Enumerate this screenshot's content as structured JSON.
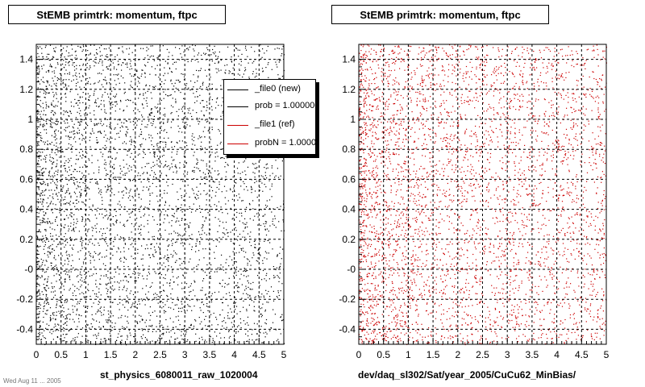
{
  "footer_note": "Wed Aug 11 ... 2005",
  "legend": {
    "entries": [
      {
        "label": "_file0 (new)",
        "color": "#000000"
      },
      {
        "label": "prob = 1.000000",
        "color": "#000000"
      },
      {
        "label": "_file1 (ref)",
        "color": "#cc0000"
      },
      {
        "label": "probN = 1.000000",
        "color": "#cc0000"
      }
    ]
  },
  "colors": {
    "new": "#000000",
    "ref": "#cc0000",
    "grid": "#000000"
  },
  "chart_data": [
    {
      "type": "scatter",
      "title": "StEMB primtrk: momentum, ftpc",
      "xlabel": "st_physics_6080011_raw_1020004",
      "ylabel": "",
      "xlim": [
        0,
        5
      ],
      "ylim": [
        -0.5,
        1.5
      ],
      "x_ticks": [
        "0",
        "0.5",
        "1",
        "1.5",
        "2",
        "2.5",
        "3",
        "3.5",
        "4",
        "4.5",
        "5"
      ],
      "y_ticks": [
        "-0.4",
        "-0.2",
        "-0",
        "0.2",
        "0.4",
        "0.6",
        "0.8",
        "1",
        "1.2",
        "1.4"
      ],
      "grid": true,
      "legend_position": "top-right",
      "series": [
        {
          "name": "_file0 (new)",
          "color": "#000000",
          "distribution": "uniform in y over [-0.5, 1.5]; density highest near x = 0.2 and decreasing toward x = 5",
          "points": [
            [
              0.12,
              1.42
            ],
            [
              0.25,
              1.18
            ],
            [
              0.31,
              0.95
            ],
            [
              0.18,
              0.72
            ],
            [
              0.4,
              0.55
            ],
            [
              0.22,
              0.31
            ],
            [
              0.35,
              0.08
            ],
            [
              0.15,
              -0.12
            ],
            [
              0.28,
              -0.33
            ],
            [
              0.42,
              -0.45
            ],
            [
              0.55,
              1.35
            ],
            [
              0.62,
              1.05
            ],
            [
              0.7,
              0.81
            ],
            [
              0.58,
              0.44
            ],
            [
              0.76,
              0.2
            ],
            [
              0.66,
              -0.05
            ],
            [
              0.81,
              -0.27
            ],
            [
              0.9,
              1.26
            ],
            [
              0.95,
              0.63
            ],
            [
              1.05,
              0.12
            ],
            [
              1.12,
              -0.38
            ],
            [
              1.22,
              1.44
            ],
            [
              1.3,
              0.91
            ],
            [
              1.38,
              0.36
            ],
            [
              1.45,
              -0.18
            ],
            [
              1.6,
              1.12
            ],
            [
              1.72,
              0.52
            ],
            [
              1.85,
              -0.08
            ],
            [
              1.95,
              0.99
            ],
            [
              2.1,
              0.27
            ],
            [
              2.25,
              -0.41
            ],
            [
              2.4,
              1.3
            ],
            [
              2.6,
              0.7
            ],
            [
              2.8,
              0.05
            ],
            [
              3.1,
              1.2
            ],
            [
              3.4,
              0.4
            ],
            [
              3.7,
              -0.3
            ],
            [
              4.0,
              0.85
            ],
            [
              4.4,
              0.15
            ],
            [
              4.8,
              1.05
            ]
          ]
        }
      ]
    },
    {
      "type": "scatter",
      "title": "StEMB primtrk: momentum, ftpc",
      "xlabel": "dev/daq_sl302/Sat/year_2005/CuCu62_MinBias/",
      "ylabel": "",
      "xlim": [
        0,
        5
      ],
      "ylim": [
        -0.5,
        1.5
      ],
      "x_ticks": [
        "0",
        "0.5",
        "1",
        "1.5",
        "2",
        "2.5",
        "3",
        "3.5",
        "4",
        "4.5",
        "5"
      ],
      "y_ticks": [
        "-0.4",
        "-0.2",
        "-0",
        "0.2",
        "0.4",
        "0.6",
        "0.8",
        "1",
        "1.2",
        "1.4"
      ],
      "grid": true,
      "series": [
        {
          "name": "_file1 (ref)",
          "color": "#cc0000",
          "distribution": "uniform in y over [-0.5, 1.5]; density highest near x = 0.2 and decreasing toward x = 5",
          "points": [
            [
              0.14,
              1.38
            ],
            [
              0.21,
              1.1
            ],
            [
              0.33,
              0.88
            ],
            [
              0.19,
              0.66
            ],
            [
              0.37,
              0.49
            ],
            [
              0.26,
              0.25
            ],
            [
              0.31,
              0.02
            ],
            [
              0.17,
              -0.16
            ],
            [
              0.29,
              -0.37
            ],
            [
              0.45,
              -0.44
            ],
            [
              0.52,
              1.31
            ],
            [
              0.64,
              1.01
            ],
            [
              0.71,
              0.77
            ],
            [
              0.57,
              0.4
            ],
            [
              0.78,
              0.17
            ],
            [
              0.67,
              -0.09
            ],
            [
              0.84,
              -0.24
            ],
            [
              0.92,
              1.22
            ],
            [
              0.97,
              0.6
            ],
            [
              1.08,
              0.09
            ],
            [
              1.15,
              -0.35
            ],
            [
              1.25,
              1.4
            ],
            [
              1.33,
              0.87
            ],
            [
              1.41,
              0.33
            ],
            [
              1.48,
              -0.21
            ],
            [
              1.63,
              1.09
            ],
            [
              1.75,
              0.49
            ],
            [
              1.88,
              -0.11
            ],
            [
              1.98,
              0.96
            ],
            [
              2.13,
              0.24
            ],
            [
              2.28,
              -0.43
            ],
            [
              2.43,
              1.27
            ],
            [
              2.63,
              0.67
            ],
            [
              2.83,
              0.02
            ],
            [
              3.13,
              1.17
            ],
            [
              3.43,
              0.37
            ],
            [
              3.73,
              -0.33
            ],
            [
              4.03,
              0.82
            ],
            [
              4.43,
              0.12
            ],
            [
              4.83,
              1.02
            ]
          ]
        }
      ]
    }
  ]
}
